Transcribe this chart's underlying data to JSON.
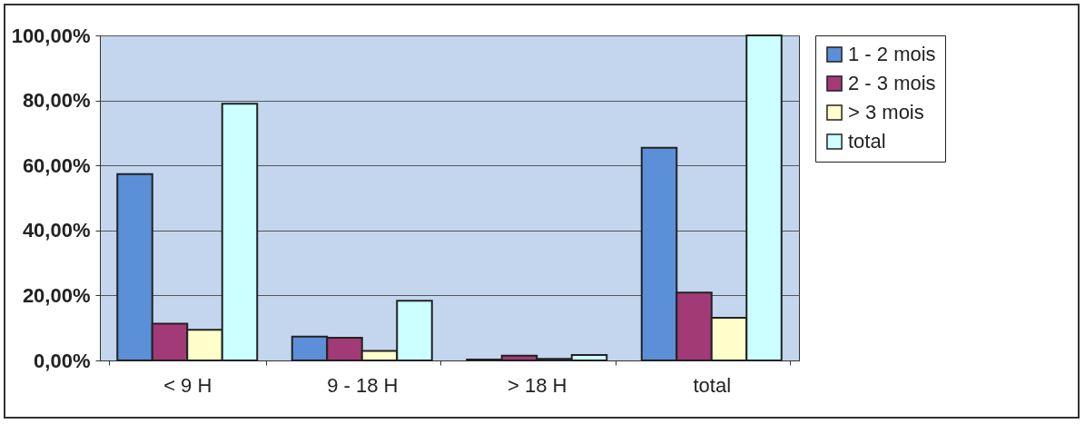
{
  "chart_data": {
    "type": "bar",
    "categories": [
      "< 9 H",
      "9 - 18 H",
      "> 18 H",
      "total"
    ],
    "series": [
      {
        "name": "1 - 2 mois",
        "color": "#5b8fd8",
        "values": [
          57.3,
          7.3,
          0.3,
          65.4
        ]
      },
      {
        "name": "2 - 3 mois",
        "color": "#a33a78",
        "values": [
          11.3,
          7,
          1.5,
          20.9
        ]
      },
      {
        "name": "> 3 mois",
        "color": "#ffffcc",
        "values": [
          9.4,
          2.9,
          0.5,
          13.1
        ]
      },
      {
        "name": "total",
        "color": "#ccffff",
        "values": [
          79,
          18.4,
          1.7,
          100
        ]
      }
    ],
    "ylim": [
      0,
      100
    ],
    "yticks": [
      {
        "value": 0,
        "label": "0,00%"
      },
      {
        "value": 20,
        "label": "20,00%"
      },
      {
        "value": 40,
        "label": "40,00%"
      },
      {
        "value": 60,
        "label": "60,00%"
      },
      {
        "value": 80,
        "label": "80,00%"
      },
      {
        "value": 100,
        "label": "100,00%"
      }
    ],
    "grid": "y",
    "legend": "right"
  }
}
